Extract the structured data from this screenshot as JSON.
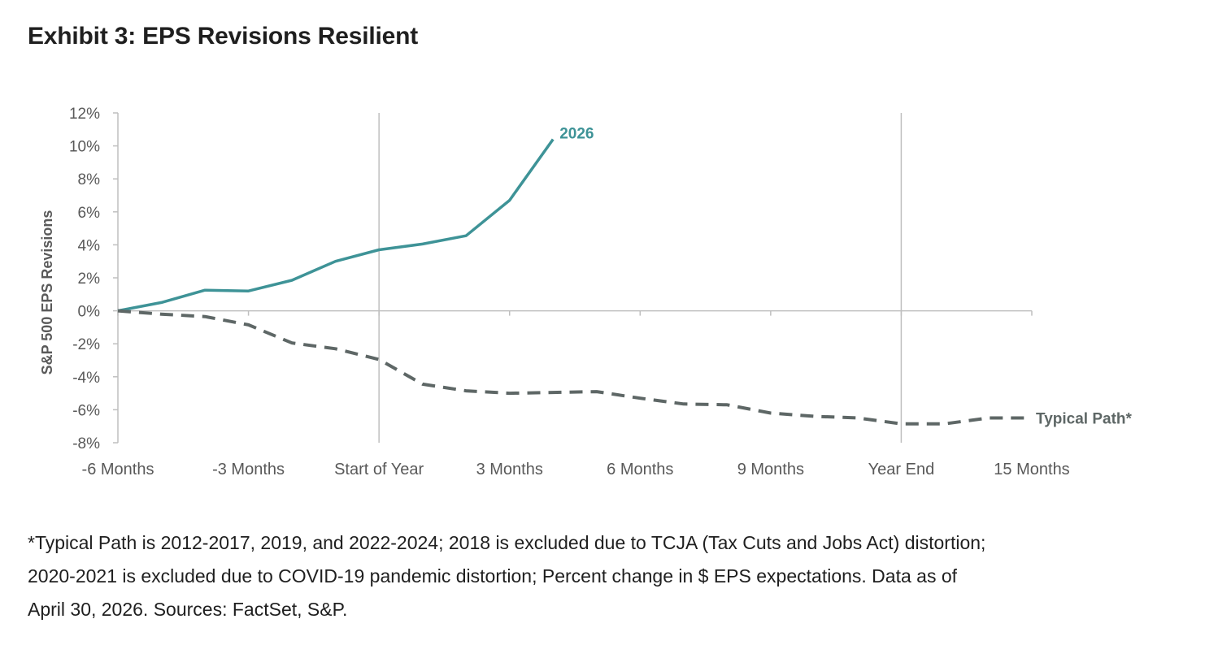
{
  "title": "Exhibit 3: EPS Revisions Resilient",
  "footnote": [
    "*Typical Path is 2012-2017, 2019, and 2022-2024; 2018 is excluded due to TCJA (Tax Cuts and Jobs Act) distortion;",
    "2020-2021 is excluded due to COVID-19 pandemic distortion; Percent change in $ EPS expectations. Data as of",
    "April 30, 2026. Sources: FactSet, S&P."
  ],
  "chart_data": {
    "type": "line",
    "title": "",
    "ylabel": "S&P 500 EPS Revisions",
    "xlabel": "",
    "ylim": [
      -8,
      12
    ],
    "yticks": [
      12,
      10,
      8,
      6,
      4,
      2,
      0,
      -2,
      -4,
      -6,
      -8
    ],
    "ytick_labels": [
      "12%",
      "10%",
      "8%",
      "6%",
      "4%",
      "2%",
      "0%",
      "-2%",
      "-4%",
      "-6%",
      "-8%"
    ],
    "xlim": [
      -6,
      15
    ],
    "xticks": [
      -6,
      -3,
      0,
      3,
      6,
      9,
      12,
      15
    ],
    "xtick_labels": [
      "-6 Months",
      "-3 Months",
      "Start of Year",
      "3 Months",
      "6 Months",
      "9 Months",
      "Year End",
      "15 Months"
    ],
    "vertical_reference_lines": [
      0,
      12
    ],
    "series": [
      {
        "name": "2026",
        "color": "#3e9397",
        "style": "solid",
        "x": [
          -6,
          -5,
          -4,
          -3,
          -2,
          -1,
          0,
          1,
          2,
          3,
          4
        ],
        "y": [
          0,
          0.5,
          1.25,
          1.2,
          1.85,
          3.0,
          3.7,
          4.05,
          4.55,
          6.7,
          10.4
        ]
      },
      {
        "name": "Typical Path*",
        "color": "#5e6766",
        "style": "dashed",
        "x": [
          -6,
          -5,
          -4,
          -3,
          -2,
          -1,
          0,
          1,
          2,
          3,
          4,
          5,
          6,
          7,
          8,
          9,
          10,
          11,
          12,
          13,
          14,
          15
        ],
        "y": [
          0,
          -0.2,
          -0.35,
          -0.85,
          -1.95,
          -2.3,
          -2.95,
          -4.45,
          -4.85,
          -5.0,
          -4.95,
          -4.9,
          -5.3,
          -5.65,
          -5.7,
          -6.2,
          -6.4,
          -6.5,
          -6.85,
          -6.85,
          -6.5,
          -6.5
        ]
      }
    ]
  }
}
